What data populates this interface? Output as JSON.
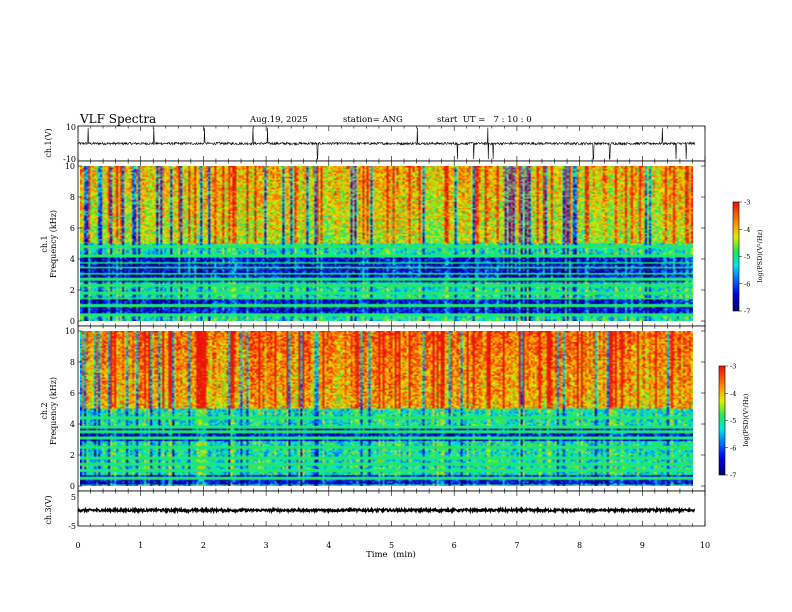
{
  "header": {
    "title": "VLF Spectra",
    "date": "Aug.19, 2025",
    "station": "station= ANG",
    "start": "start  UT =   7 : 10 : 0"
  },
  "chart_data": {
    "type": "heatmap",
    "x_axis": {
      "label": "Time  (min)",
      "range": [
        0,
        10
      ],
      "ticks": [
        "0",
        "1",
        "2",
        "3",
        "4",
        "5",
        "6",
        "7",
        "8",
        "9",
        "10"
      ],
      "data_end_min": 9.84
    },
    "panels": [
      {
        "name": "ch1-waveform",
        "kind": "waveform",
        "ylabel": "ch.1(V)",
        "ylim": [
          -10,
          10
        ],
        "ticks": [
          "10",
          "-10"
        ],
        "baseline": 0,
        "noise_amplitude": 0.7,
        "spike_times_min": [
          0.16,
          1.21,
          2.02,
          2.79,
          3.02,
          3.82,
          5.41,
          6.05,
          6.31,
          6.54,
          6.62,
          8.22,
          8.48,
          9.32,
          9.54,
          9.7
        ]
      },
      {
        "name": "ch1-spectrogram",
        "kind": "spectrogram",
        "title": "ch.1",
        "ylabel": "Frequency  (kHz)",
        "ylim": [
          0,
          10
        ],
        "ticks": [
          "0",
          "2",
          "4",
          "6",
          "8",
          "10"
        ],
        "colorbar": {
          "label": "log(PSD)(V²/Hz)",
          "range": [
            -7,
            -3
          ],
          "ticks": [
            "-3",
            "-4",
            "-5",
            "-6",
            "-7"
          ]
        },
        "low_bands_khz": [
          [
            0.5,
            1.5
          ],
          [
            2.5,
            4.3
          ]
        ],
        "line_freqs_khz": [
          0.4,
          1.0,
          1.45,
          1.8,
          2.3,
          2.7,
          3.05,
          3.45,
          3.75,
          4.2,
          4.8
        ]
      },
      {
        "name": "ch2-spectrogram",
        "kind": "spectrogram",
        "title": "ch.2",
        "ylabel": "Frequency  (kHz)",
        "ylim": [
          0,
          10
        ],
        "ticks": [
          "0",
          "2",
          "4",
          "6",
          "8",
          "10"
        ],
        "colorbar": {
          "label": "log(PSD)(V²/Hz)",
          "range": [
            -7,
            -3
          ],
          "ticks": [
            "-3",
            "-4",
            "-5",
            "-6",
            "-7"
          ]
        },
        "low_bands_khz": [
          [
            0.1,
            0.7
          ],
          [
            2.9,
            3.9
          ]
        ],
        "line_freqs_khz": [
          0.5,
          1.0,
          1.4,
          1.8,
          2.5,
          3.1,
          3.5,
          3.8,
          4.4
        ]
      },
      {
        "name": "ch3-waveform",
        "kind": "waveform",
        "ylabel": "ch.3(V)",
        "ylim": [
          -5,
          5
        ],
        "ticks": [
          "5",
          "-5"
        ],
        "baseline": -0.5,
        "noise_amplitude": 0.35,
        "spike_times_min": []
      }
    ]
  }
}
